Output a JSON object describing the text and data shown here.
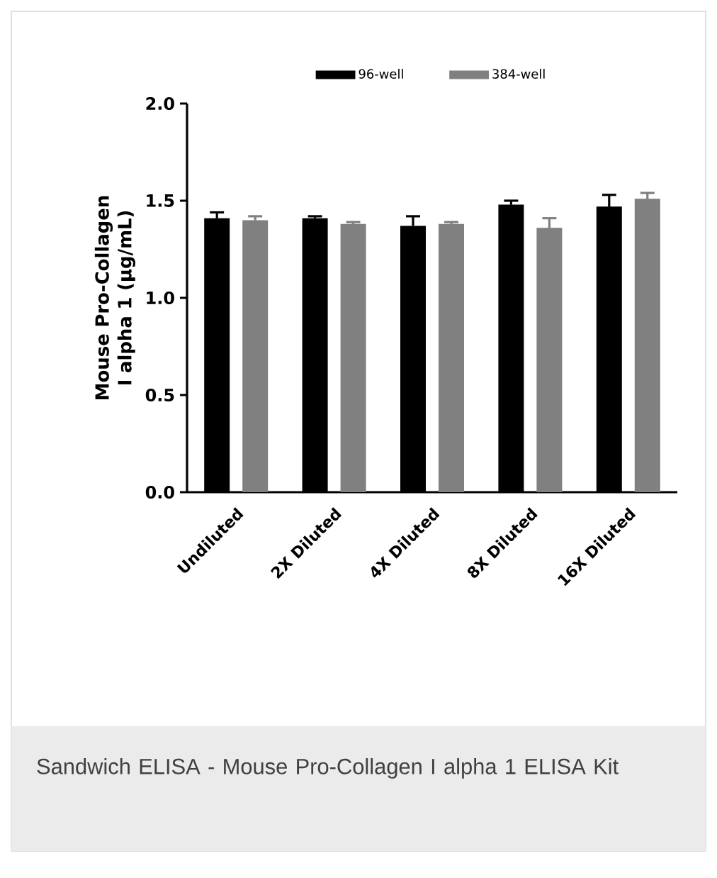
{
  "chart_data": {
    "type": "bar",
    "ylabel": "Mouse Pro-Collagen I alpha 1 (µg/mL)",
    "categories": [
      "Undiluted",
      "2X Diluted",
      "4X Diluted",
      "8X Diluted",
      "16X Diluted"
    ],
    "series": [
      {
        "name": "96-well",
        "color": "#000000",
        "values": [
          1.41,
          1.41,
          1.37,
          1.48,
          1.47
        ],
        "errors": [
          0.03,
          0.01,
          0.05,
          0.02,
          0.06
        ]
      },
      {
        "name": "384-well",
        "color": "#808080",
        "values": [
          1.4,
          1.38,
          1.38,
          1.36,
          1.51
        ],
        "errors": [
          0.02,
          0.01,
          0.01,
          0.05,
          0.03
        ]
      }
    ],
    "ylim": [
      0,
      2.0
    ],
    "yticks": [
      {
        "value": 0,
        "label": "0.0"
      },
      0.5,
      {
        "value": 1,
        "label": "1.0"
      },
      1.5,
      {
        "value": 2,
        "label": "2.0"
      }
    ],
    "legend": "top",
    "annotations": [
      "Sandwich ELISA - Mouse Pro-Collagen I alpha 1 ELISA Kit"
    ]
  }
}
